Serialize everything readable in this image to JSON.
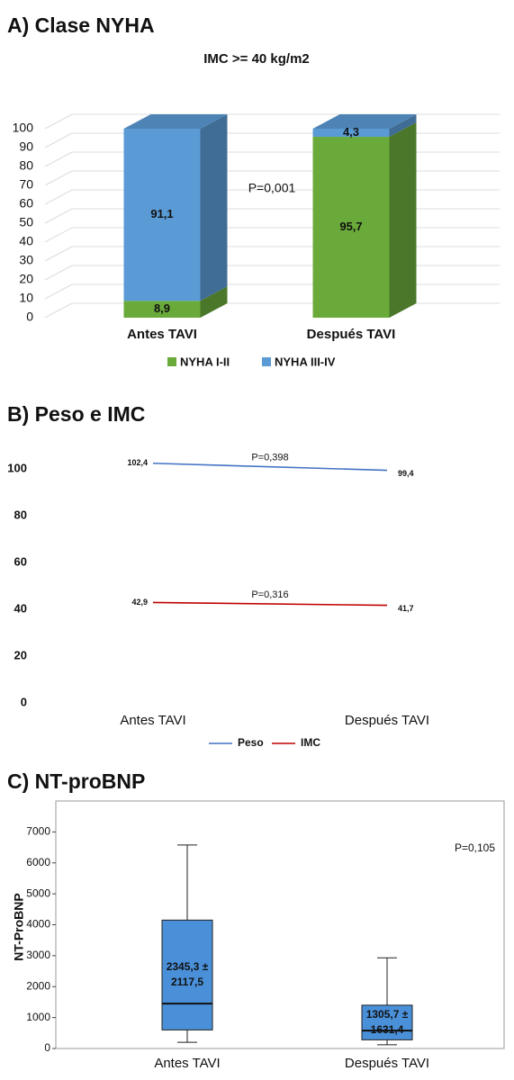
{
  "chart_data": [
    {
      "type": "bar",
      "title": "A) Clase NYHA",
      "subtitle": "IMC >= 40 kg/m2",
      "categories": [
        "Antes TAVI",
        "Después TAVI"
      ],
      "series": [
        {
          "name": "NYHA I-II",
          "color": "#6aaa3a",
          "values": [
            8.9,
            95.7
          ],
          "value_labels": [
            "8,9",
            "95,7"
          ]
        },
        {
          "name": "NYHA III-IV",
          "color": "#5b9bd5",
          "values": [
            91.1,
            4.3
          ],
          "value_labels": [
            "91,1",
            "4,3"
          ]
        }
      ],
      "stacked": true,
      "annotations": [
        "P=0,001"
      ],
      "ylim": [
        0,
        100
      ],
      "yticks": [
        0,
        10,
        20,
        30,
        40,
        50,
        60,
        70,
        80,
        90,
        100
      ],
      "grid": true
    },
    {
      "type": "line",
      "title": "B) Peso e IMC",
      "categories": [
        "Antes TAVI",
        "Después TAVI"
      ],
      "series": [
        {
          "name": "Peso",
          "color": "#4472c4",
          "values": [
            102.4,
            99.4
          ],
          "value_labels": [
            "102,4",
            "99,4"
          ]
        },
        {
          "name": "IMC",
          "color": "#c00000",
          "values": [
            42.9,
            41.7
          ],
          "value_labels": [
            "42,9",
            "41,7"
          ]
        }
      ],
      "annotations": [
        "P=0,398",
        "P=0,316"
      ],
      "ylim": [
        0,
        110
      ],
      "yticks": [
        0,
        20,
        40,
        60,
        80,
        100
      ],
      "grid": false
    },
    {
      "type": "box",
      "title": "C) NT-proBNP",
      "y_label": "NT-ProBNP",
      "categories": [
        "Antes TAVI",
        "Después TAVI"
      ],
      "color": "#4a90d9",
      "boxes": [
        {
          "whislo": 200,
          "q1": 600,
          "med": 1450,
          "q3": 4150,
          "whishi": 6580
        },
        {
          "whislo": 120,
          "q1": 280,
          "med": 580,
          "q3": 1400,
          "whishi": 2930
        }
      ],
      "box_labels": [
        [
          "2345,3 ±",
          "2117,5"
        ],
        [
          "1305,7 ±",
          "1631,4"
        ]
      ],
      "annotations": [
        "P=0,105"
      ],
      "ylim": [
        0,
        8000
      ],
      "yticks": [
        0,
        1000,
        2000,
        3000,
        4000,
        5000,
        6000,
        7000
      ]
    }
  ]
}
